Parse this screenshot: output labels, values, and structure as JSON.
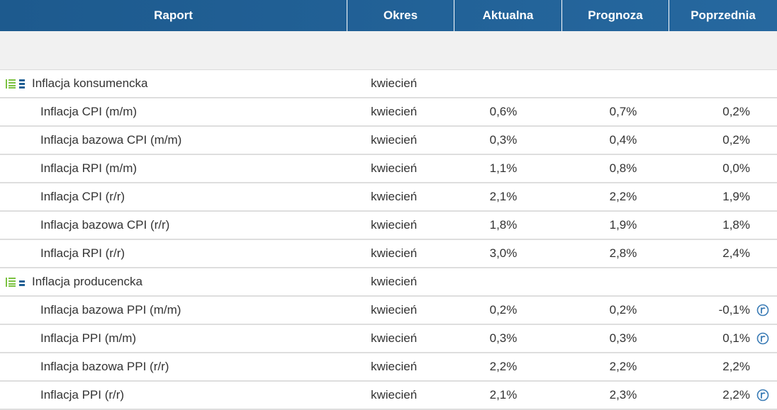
{
  "header": {
    "report": "Raport",
    "period": "Okres",
    "actual": "Aktualna",
    "forecast": "Prognoza",
    "previous": "Poprzednia"
  },
  "colors": {
    "header_bg": "#1d5a8e",
    "group_icon_green": "#7cc242",
    "group_icon_blue": "#1f5f94",
    "revised_icon": "#3a7bb5"
  },
  "groups": [
    {
      "label": "Inflacja konsumencka",
      "period": "kwiecień",
      "icon": "expand-list-icon",
      "rows": [
        {
          "name": "Inflacja CPI (m/m)",
          "period": "kwiecień",
          "actual": "0,6%",
          "forecast": "0,7%",
          "previous": "0,2%",
          "revised": false
        },
        {
          "name": "Inflacja bazowa CPI (m/m)",
          "period": "kwiecień",
          "actual": "0,3%",
          "forecast": "0,4%",
          "previous": "0,2%",
          "revised": false
        },
        {
          "name": "Inflacja RPI (m/m)",
          "period": "kwiecień",
          "actual": "1,1%",
          "forecast": "0,8%",
          "previous": "0,0%",
          "revised": false
        },
        {
          "name": "Inflacja CPI (r/r)",
          "period": "kwiecień",
          "actual": "2,1%",
          "forecast": "2,2%",
          "previous": "1,9%",
          "revised": false
        },
        {
          "name": "Inflacja bazowa CPI (r/r)",
          "period": "kwiecień",
          "actual": "1,8%",
          "forecast": "1,9%",
          "previous": "1,8%",
          "revised": false
        },
        {
          "name": "Inflacja RPI (r/r)",
          "period": "kwiecień",
          "actual": "3,0%",
          "forecast": "2,8%",
          "previous": "2,4%",
          "revised": false
        }
      ]
    },
    {
      "label": "Inflacja producencka",
      "period": "kwiecień",
      "icon": "expand-list-icon",
      "rows": [
        {
          "name": "Inflacja bazowa PPI (m/m)",
          "period": "kwiecień",
          "actual": "0,2%",
          "forecast": "0,2%",
          "previous": "-0,1%",
          "revised": true
        },
        {
          "name": "Inflacja PPI (m/m)",
          "period": "kwiecień",
          "actual": "0,3%",
          "forecast": "0,3%",
          "previous": "0,1%",
          "revised": true
        },
        {
          "name": "Inflacja bazowa PPI (r/r)",
          "period": "kwiecień",
          "actual": "2,2%",
          "forecast": "2,2%",
          "previous": "2,2%",
          "revised": false
        },
        {
          "name": "Inflacja PPI (r/r)",
          "period": "kwiecień",
          "actual": "2,1%",
          "forecast": "2,3%",
          "previous": "2,2%",
          "revised": true
        }
      ]
    }
  ]
}
